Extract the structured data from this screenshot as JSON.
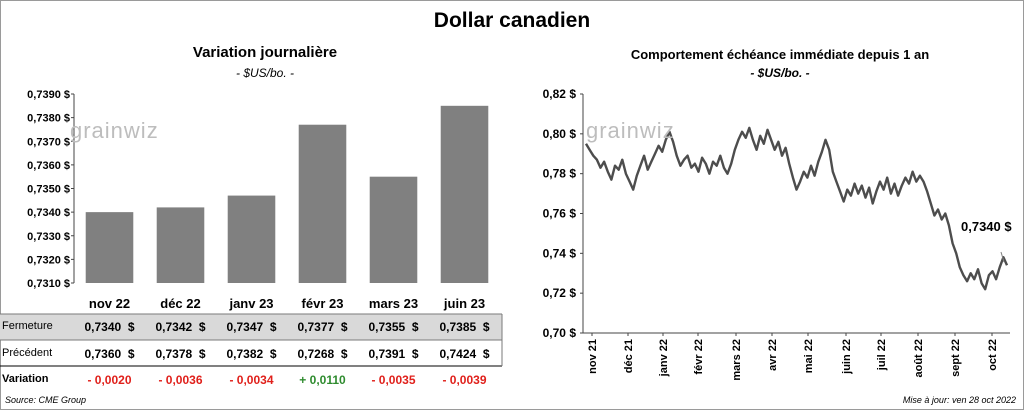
{
  "title": "Dollar canadien",
  "left_panel": {
    "title": "Variation  journalière",
    "unit": "- $US/bo. -",
    "watermark": "grainwiz"
  },
  "right_panel": {
    "title": "Comportement échéance immédiate depuis 1 an",
    "unit": "- $US/bo. -",
    "watermark": "grainwiz",
    "last_value_label": "0,7340 $"
  },
  "table": {
    "row_labels": [
      "Fermeture",
      "Précédent",
      "Variation"
    ],
    "fermeture": [
      "0,7340  $",
      "0,7342  $",
      "0,7347  $",
      "0,7377  $",
      "0,7355  $",
      "0,7385  $"
    ],
    "precedent": [
      "0,7360  $",
      "0,7378  $",
      "0,7382  $",
      "0,7268  $",
      "0,7391  $",
      "0,7424  $"
    ],
    "variation": [
      "- 0,0020",
      "- 0,0036",
      "- 0,0034",
      "+ 0,0110",
      "- 0,0035",
      "- 0,0039"
    ],
    "colors": {
      "negative": "#e0201b",
      "positive": "#2e8b2e",
      "shade": "#d9d9d9"
    }
  },
  "footer": {
    "source": "Source: CME Group",
    "updated": "Mise à jour: ven 28 oct 2022"
  },
  "chart_data": [
    {
      "type": "bar",
      "categories": [
        "nov 22",
        "déc 22",
        "janv 23",
        "févr 23",
        "mars 23",
        "juin 23"
      ],
      "values": [
        0.734,
        0.7342,
        0.7347,
        0.7377,
        0.7355,
        0.7385
      ],
      "ylim": [
        0.731,
        0.739
      ],
      "yticks": [
        "0,7310 $",
        "0,7320 $",
        "0,7330 $",
        "0,7340 $",
        "0,7350 $",
        "0,7360 $",
        "0,7370 $",
        "0,7380 $",
        "0,7390 $"
      ],
      "bar_color": "#808080",
      "grid": false
    },
    {
      "type": "line",
      "x_labels": [
        "nov 21",
        "déc 21",
        "janv 22",
        "févr 22",
        "mars 22",
        "avr 22",
        "mai 22",
        "juin 22",
        "juil 22",
        "août 22",
        "sept 22",
        "oct 22"
      ],
      "ylim": [
        0.7,
        0.82
      ],
      "yticks": [
        "0,70 $",
        "0,72 $",
        "0,74 $",
        "0,76 $",
        "0,78 $",
        "0,80 $",
        "0,82 $"
      ],
      "line_color": "#4d4d4d",
      "grid": false,
      "series": [
        {
          "values": [
            0.795,
            0.792,
            0.789,
            0.787,
            0.783,
            0.786,
            0.781,
            0.777,
            0.784,
            0.782,
            0.787,
            0.78,
            0.776,
            0.772,
            0.779,
            0.784,
            0.789,
            0.782,
            0.786,
            0.79,
            0.794,
            0.791,
            0.797,
            0.801,
            0.796,
            0.789,
            0.784,
            0.787,
            0.789,
            0.783,
            0.785,
            0.781,
            0.788,
            0.785,
            0.78,
            0.786,
            0.784,
            0.789,
            0.783,
            0.78,
            0.785,
            0.792,
            0.797,
            0.801,
            0.798,
            0.803,
            0.797,
            0.792,
            0.799,
            0.795,
            0.802,
            0.797,
            0.792,
            0.796,
            0.789,
            0.793,
            0.785,
            0.778,
            0.772,
            0.776,
            0.781,
            0.778,
            0.784,
            0.779,
            0.786,
            0.791,
            0.797,
            0.792,
            0.781,
            0.776,
            0.771,
            0.766,
            0.772,
            0.769,
            0.775,
            0.77,
            0.774,
            0.768,
            0.773,
            0.765,
            0.771,
            0.776,
            0.772,
            0.778,
            0.77,
            0.775,
            0.769,
            0.774,
            0.778,
            0.775,
            0.781,
            0.776,
            0.779,
            0.776,
            0.771,
            0.765,
            0.759,
            0.762,
            0.757,
            0.76,
            0.754,
            0.745,
            0.74,
            0.733,
            0.729,
            0.726,
            0.73,
            0.727,
            0.732,
            0.725,
            0.722,
            0.729,
            0.731,
            0.727,
            0.733,
            0.738,
            0.734
          ]
        }
      ]
    }
  ]
}
